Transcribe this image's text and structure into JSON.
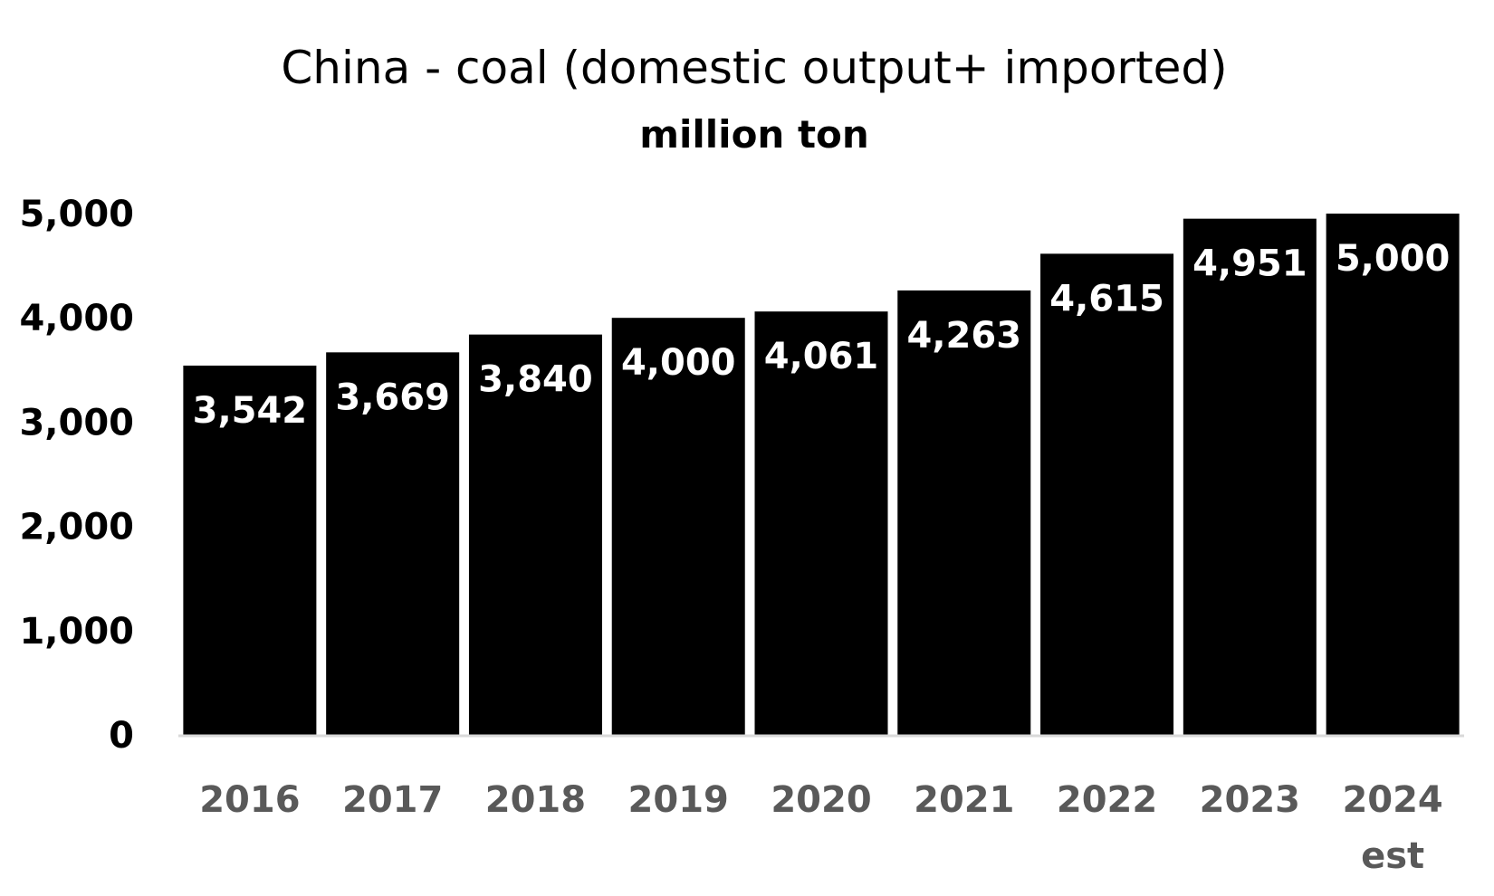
{
  "chart_data": {
    "type": "bar",
    "title": "China - coal (domestic output+ imported)",
    "subtitle": "million ton",
    "categories": [
      "2016",
      "2017",
      "2018",
      "2019",
      "2020",
      "2021",
      "2022",
      "2023",
      "2024 est"
    ],
    "category_lines": [
      [
        "2016"
      ],
      [
        "2017"
      ],
      [
        "2018"
      ],
      [
        "2019"
      ],
      [
        "2020"
      ],
      [
        "2021"
      ],
      [
        "2022"
      ],
      [
        "2023"
      ],
      [
        "2024",
        "est"
      ]
    ],
    "values": [
      3542,
      3669,
      3840,
      4000,
      4061,
      4263,
      4615,
      4951,
      5000
    ],
    "data_labels": [
      "3,542",
      "3,669",
      "3,840",
      "4,000",
      "4,061",
      "4,263",
      "4,615",
      "4,951",
      "5,000"
    ],
    "y_ticks": [
      0,
      1000,
      2000,
      3000,
      4000,
      5000
    ],
    "y_tick_labels": [
      "0",
      "1,000",
      "2,000",
      "3,000",
      "4,000",
      "5,000"
    ],
    "ylim": [
      0,
      5000
    ],
    "xlabel": "",
    "ylabel": "",
    "grid": false,
    "legend": "none",
    "bar_color": "#000000",
    "data_label_color": "#ffffff",
    "x_tick_color": "#595959",
    "axis_line_color": "#d9d9d9"
  }
}
